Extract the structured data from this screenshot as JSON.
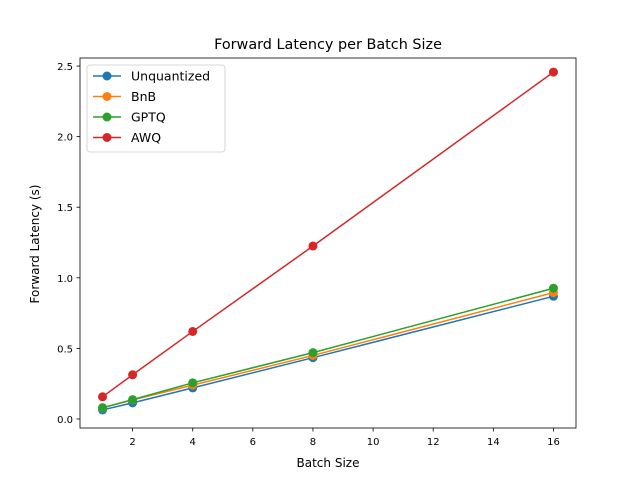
{
  "chart_data": {
    "type": "line",
    "title": "Forward Latency per Batch Size",
    "xlabel": "Batch Size",
    "ylabel": "Forward Latency (s)",
    "x": [
      1,
      2,
      4,
      8,
      16
    ],
    "xlim": [
      0.25,
      16.75
    ],
    "ylim": [
      -0.064,
      2.557
    ],
    "xticks": [
      "2",
      "4",
      "6",
      "8",
      "10",
      "12",
      "14",
      "16"
    ],
    "yticks": [
      "0.0",
      "0.5",
      "1.0",
      "1.5",
      "2.0",
      "2.5"
    ],
    "grid": false,
    "legend_position": "top-left",
    "series": [
      {
        "name": "Unquantized",
        "color": "#1f77b4",
        "values": [
          0.064,
          0.114,
          0.22,
          0.434,
          0.869
        ]
      },
      {
        "name": "BnB",
        "color": "#ff7f0e",
        "values": [
          0.078,
          0.135,
          0.24,
          0.45,
          0.895
        ]
      },
      {
        "name": "GPTQ",
        "color": "#2ca02c",
        "values": [
          0.08,
          0.137,
          0.256,
          0.47,
          0.926
        ]
      },
      {
        "name": "AWQ",
        "color": "#d62728",
        "values": [
          0.157,
          0.313,
          0.62,
          1.225,
          2.457
        ]
      }
    ]
  }
}
